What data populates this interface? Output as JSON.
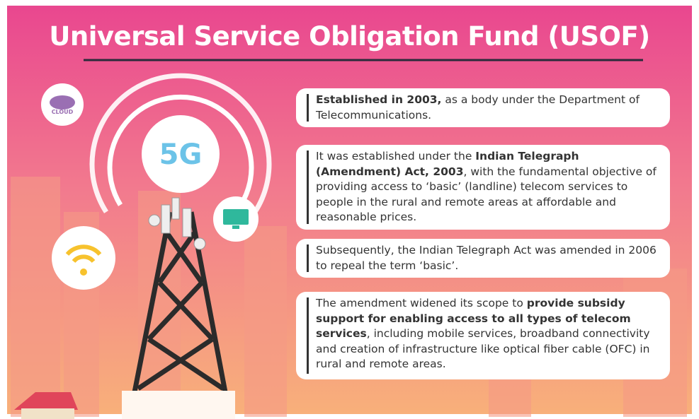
{
  "title": "Universal Service Obligation Fund (USOF)",
  "icons": {
    "network": "5G",
    "cloud": "CLOUD"
  },
  "cards": [
    {
      "segments": [
        {
          "text": "Established in 2003,",
          "bold": true
        },
        {
          "text": " as a body under the Department of Telecommunications.",
          "bold": false
        }
      ]
    },
    {
      "segments": [
        {
          "text": "It was established under the ",
          "bold": false
        },
        {
          "text": "Indian Telegraph (Amendment) Act, 2003",
          "bold": true
        },
        {
          "text": ", with the fundamental objective of providing access to ‘basic’ (landline) telecom services to people in the rural and remote areas at affordable and reasonable prices.",
          "bold": false
        }
      ]
    },
    {
      "segments": [
        {
          "text": "Subsequently, the Indian Telegraph Act was amended in 2006 to repeal the term ‘basic’.",
          "bold": false
        }
      ]
    },
    {
      "segments": [
        {
          "text": "The amendment widened its scope to ",
          "bold": false
        },
        {
          "text": "provide subsidy support for enabling access to all types of telecom services",
          "bold": true
        },
        {
          "text": ", including mobile services, broadband connectivity and creation of infrastructure like optical fiber cable (OFC) in rural and remote areas.",
          "bold": false
        }
      ]
    }
  ]
}
